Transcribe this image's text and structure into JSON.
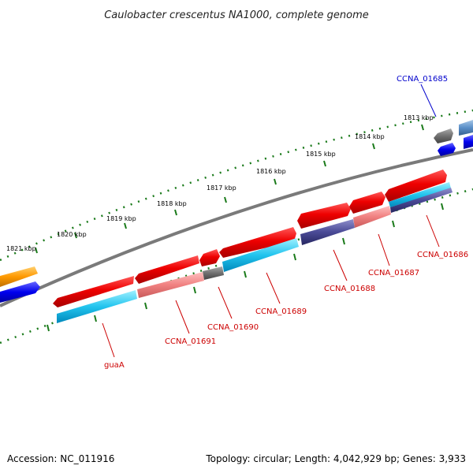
{
  "title": "Caulobacter crescentus NA1000, complete genome",
  "footer": {
    "accession": "Accession: NC_011916",
    "summary": "Topology: circular; Length: 4,042,929 bp; Genes: 3,933"
  },
  "colors": {
    "red_gene": "#ee0000",
    "blue_label": "#0000cc",
    "red_label": "#cc0000",
    "backbone": "#777777",
    "ticks": "#1a7a1a"
  },
  "kbp_labels": [
    "1813 kbp",
    "1814 kbp",
    "1815 kbp",
    "1816 kbp",
    "1817 kbp",
    "1818 kbp",
    "1819 kbp",
    "1820 kbp",
    "1821 kbp"
  ],
  "gene_labels": {
    "ccna_01685": "CCNA_01685",
    "ccna_01686": "CCNA_01686",
    "ccna_01687": "CCNA_01687",
    "ccna_01688": "CCNA_01688",
    "ccna_01689": "CCNA_01689",
    "ccna_01690": "CCNA_01690",
    "ccna_01691": "CCNA_01691",
    "guaA": "guaA"
  }
}
